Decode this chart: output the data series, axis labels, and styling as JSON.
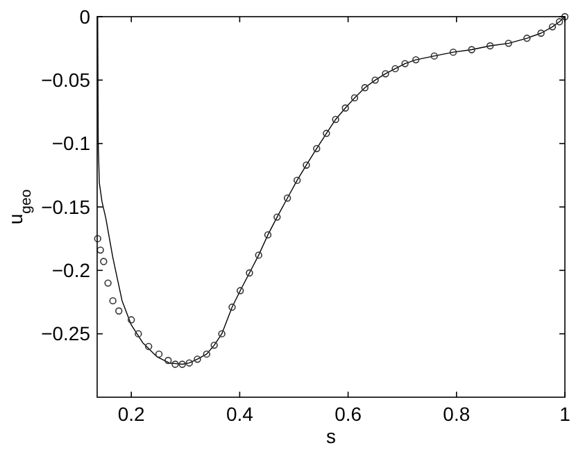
{
  "chart_data": {
    "type": "line",
    "xlabel": "s",
    "ylabel": "u$_{geo}$",
    "xlim": [
      0.137,
      1
    ],
    "ylim": [
      -0.3,
      0
    ],
    "xticks": [
      0.2,
      0.4,
      0.6,
      0.8,
      1
    ],
    "yticks": [
      0,
      -0.05,
      -0.1,
      -0.15,
      -0.2,
      -0.25
    ],
    "grid": false,
    "series": [
      {
        "color": "#000000",
        "marker": "none",
        "line_style": "solid",
        "x": [
          0.138,
          0.139,
          0.141,
          0.146,
          0.153,
          0.166,
          0.183,
          0.2,
          0.221,
          0.247,
          0.27,
          0.294,
          0.307,
          0.322,
          0.339,
          0.353,
          0.367,
          0.386,
          0.401,
          0.418,
          0.435,
          0.452,
          0.469,
          0.488,
          0.506,
          0.523,
          0.542,
          0.56,
          0.577,
          0.595,
          0.612,
          0.631,
          0.65,
          0.669,
          0.687,
          0.705,
          0.725,
          0.759,
          0.794,
          0.828,
          0.862,
          0.896,
          0.93,
          0.956,
          0.977,
          0.99,
          1.0
        ],
        "values": [
          0,
          -0.1,
          -0.131,
          -0.146,
          -0.159,
          -0.19,
          -0.224,
          -0.243,
          -0.257,
          -0.268,
          -0.273,
          -0.274,
          -0.273,
          -0.27,
          -0.266,
          -0.259,
          -0.25,
          -0.229,
          -0.216,
          -0.202,
          -0.188,
          -0.172,
          -0.158,
          -0.143,
          -0.129,
          -0.117,
          -0.104,
          -0.092,
          -0.081,
          -0.072,
          -0.064,
          -0.056,
          -0.05,
          -0.045,
          -0.041,
          -0.037,
          -0.034,
          -0.031,
          -0.028,
          -0.026,
          -0.023,
          -0.021,
          -0.017,
          -0.013,
          -0.008,
          -0.004,
          0
        ]
      },
      {
        "type": "scatter",
        "color": "#333333",
        "marker": "circle",
        "x": [
          0.138,
          0.143,
          0.149,
          0.157,
          0.166,
          0.177,
          0.2,
          0.213,
          0.232,
          0.251,
          0.268,
          0.281,
          0.294,
          0.307,
          0.322,
          0.339,
          0.353,
          0.367,
          0.386,
          0.401,
          0.418,
          0.435,
          0.452,
          0.469,
          0.488,
          0.506,
          0.523,
          0.542,
          0.56,
          0.577,
          0.595,
          0.612,
          0.631,
          0.65,
          0.669,
          0.687,
          0.705,
          0.725,
          0.759,
          0.794,
          0.828,
          0.862,
          0.896,
          0.93,
          0.956,
          0.977,
          0.99,
          1.0
        ],
        "values": [
          -0.175,
          -0.184,
          -0.193,
          -0.21,
          -0.224,
          -0.232,
          -0.239,
          -0.25,
          -0.26,
          -0.266,
          -0.271,
          -0.274,
          -0.274,
          -0.273,
          -0.27,
          -0.266,
          -0.259,
          -0.25,
          -0.229,
          -0.216,
          -0.202,
          -0.188,
          -0.172,
          -0.158,
          -0.143,
          -0.129,
          -0.117,
          -0.104,
          -0.092,
          -0.081,
          -0.072,
          -0.064,
          -0.056,
          -0.05,
          -0.045,
          -0.041,
          -0.037,
          -0.034,
          -0.031,
          -0.028,
          -0.026,
          -0.023,
          -0.021,
          -0.017,
          -0.013,
          -0.008,
          -0.004,
          0
        ]
      }
    ]
  }
}
